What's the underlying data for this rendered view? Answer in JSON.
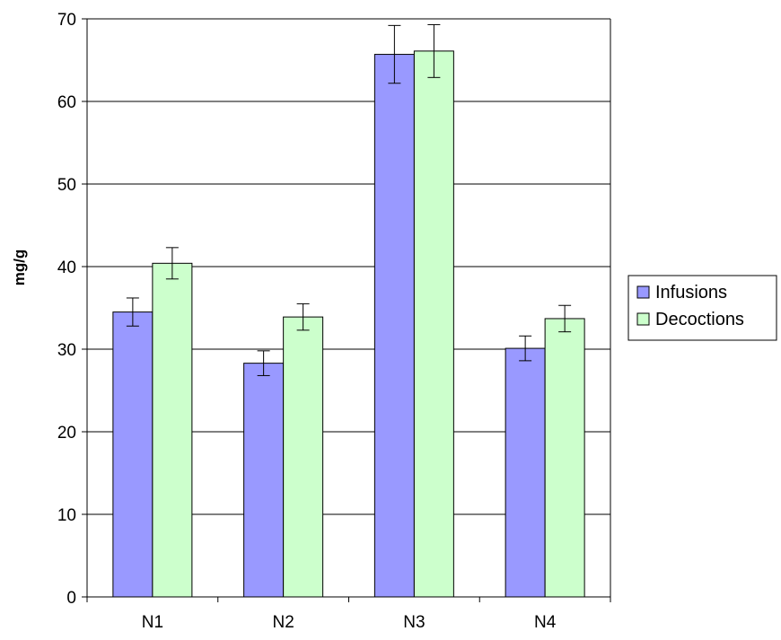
{
  "chart_data": {
    "type": "bar",
    "categories": [
      "N1",
      "N2",
      "N3",
      "N4"
    ],
    "series": [
      {
        "name": "Infusions",
        "values": [
          34.5,
          28.3,
          65.7,
          30.1
        ],
        "error": [
          1.7,
          1.5,
          3.5,
          1.5
        ],
        "color": "#9999ff"
      },
      {
        "name": "Decoctions",
        "values": [
          40.4,
          33.9,
          66.1,
          33.7
        ],
        "error": [
          1.9,
          1.6,
          3.2,
          1.6
        ],
        "color": "#ccffcc"
      }
    ],
    "title": "",
    "xlabel": "",
    "ylabel": "mg/g",
    "ylim": [
      0,
      70
    ],
    "yticks": [
      0,
      10,
      20,
      30,
      40,
      50,
      60,
      70
    ],
    "grid": true,
    "legend_position": "right"
  }
}
